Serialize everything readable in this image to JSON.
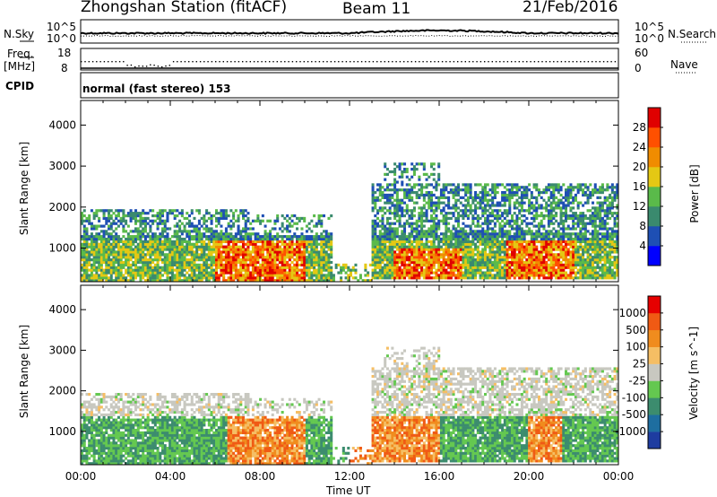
{
  "header": {
    "station": "Zhongshan Station (fitACF)",
    "beam": "Beam 11",
    "date": "21/Feb/2016"
  },
  "side_labels": {
    "nsky": "N.Sky",
    "nsearch": "N.Search",
    "freq": "Freq.",
    "freq_unit": "[MHz]",
    "nave": "Nave",
    "cpid": "CPID",
    "cpid_value": "normal (fast stereo) 153"
  },
  "noise_axis": {
    "left_ticks": [
      "10^5",
      "10^0"
    ],
    "right_ticks": [
      "10^5",
      "10^0"
    ]
  },
  "freq_axis": {
    "left_ticks": [
      "18",
      "8"
    ],
    "right_ticks": [
      "60",
      "0"
    ]
  },
  "chart_data": [
    {
      "type": "heatmap",
      "name": "power",
      "ylabel": "Slant Range [km]",
      "ylim": [
        180,
        4600
      ],
      "yticks": [
        1000,
        2000,
        3000,
        4000
      ],
      "colorbar_label": "Power [dB]",
      "colorbar_ticks": [
        4,
        8,
        12,
        16,
        20,
        24,
        28
      ],
      "colors": [
        "#0000ff",
        "#1e4fb4",
        "#3a8a6e",
        "#5aba4a",
        "#e4c814",
        "#f08c00",
        "#ff5000",
        "#e00000"
      ]
    },
    {
      "type": "heatmap",
      "name": "velocity",
      "ylabel": "Slant Range [km]",
      "ylim": [
        180,
        4600
      ],
      "yticks": [
        1000,
        2000,
        3000,
        4000
      ],
      "colorbar_label": "Velocity [m s^-1]",
      "colorbar_ticks": [
        "1000",
        "500",
        "100",
        "25",
        "-25",
        "-100",
        "-500",
        "-1000"
      ],
      "colors": [
        "#1e3ca0",
        "#1e6ea0",
        "#3c8c6e",
        "#64c850",
        "#c8c8c0",
        "#f5be64",
        "#f08c1e",
        "#f05a14",
        "#e60000"
      ]
    }
  ],
  "x_axis": {
    "label": "Time UT",
    "ticks": [
      "00:00",
      "04:00",
      "08:00",
      "12:00",
      "16:00",
      "20:00",
      "00:00"
    ]
  }
}
